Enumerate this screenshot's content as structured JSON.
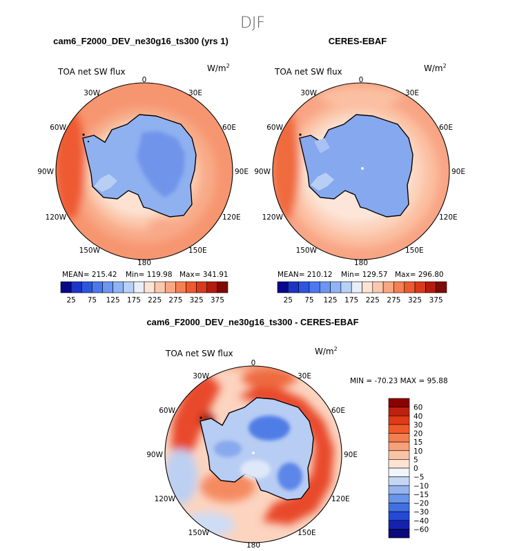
{
  "figure_title": "DJF",
  "chart_data": [
    {
      "type": "heatmap",
      "projection": "south-polar stereographic",
      "title": "cam6_F2000_DEV_ne30g16_ts300 (yrs 1)",
      "variable": "TOA net SW flux",
      "units": "W/m",
      "units_exp": "2",
      "lon_labels": [
        "0",
        "30E",
        "60E",
        "90E",
        "120E",
        "150E",
        "180",
        "150W",
        "120W",
        "90W",
        "60W",
        "30W"
      ],
      "stats": {
        "mean_label": "MEAN= 215.42",
        "min_label": "Min= 119.98",
        "max_label": "Max= 341.91"
      },
      "colorbar": {
        "levels": [
          25,
          50,
          75,
          100,
          125,
          150,
          175,
          200,
          225,
          250,
          275,
          300,
          325,
          350,
          375
        ],
        "labels": [
          "25",
          "75",
          "125",
          "175",
          "225",
          "275",
          "325",
          "375"
        ],
        "colors": [
          "#08088a",
          "#1c34c8",
          "#2d55e0",
          "#4a78ee",
          "#6b96f2",
          "#8fb3f4",
          "#b8d0f7",
          "#e8eef9",
          "#fde3d3",
          "#fcc8ad",
          "#f9a783",
          "#f58054",
          "#ee5a2e",
          "#d93a1b",
          "#b31b0f",
          "#7f0a05"
        ]
      }
    },
    {
      "type": "heatmap",
      "projection": "south-polar stereographic",
      "title": "CERES-EBAF",
      "variable": "TOA net SW flux",
      "units": "W/m",
      "units_exp": "2",
      "lon_labels": [
        "0",
        "30E",
        "60E",
        "90E",
        "120E",
        "150E",
        "180",
        "150W",
        "120W",
        "90W",
        "60W",
        "30W"
      ],
      "stats": {
        "mean_label": "MEAN= 210.12",
        "min_label": "Min= 129.57",
        "max_label": "Max= 296.80"
      },
      "colorbar": {
        "levels": [
          25,
          50,
          75,
          100,
          125,
          150,
          175,
          200,
          225,
          250,
          275,
          300,
          325,
          350,
          375
        ],
        "labels": [
          "25",
          "75",
          "125",
          "175",
          "225",
          "275",
          "325",
          "375"
        ],
        "colors": [
          "#08088a",
          "#1c34c8",
          "#2d55e0",
          "#4a78ee",
          "#6b96f2",
          "#8fb3f4",
          "#b8d0f7",
          "#e8eef9",
          "#fde3d3",
          "#fcc8ad",
          "#f9a783",
          "#f58054",
          "#ee5a2e",
          "#d93a1b",
          "#b31b0f",
          "#7f0a05"
        ]
      }
    },
    {
      "type": "heatmap",
      "projection": "south-polar stereographic",
      "title": "cam6_F2000_DEV_ne30g16_ts300 - CERES-EBAF",
      "variable": "TOA net SW flux",
      "units": "W/m",
      "units_exp": "2",
      "lon_labels": [
        "0",
        "30E",
        "60E",
        "90E",
        "120E",
        "150E",
        "180",
        "150W",
        "120W",
        "90W",
        "60W",
        "30W"
      ],
      "stats": {
        "minmax_label": "MIN = -70.23 MAX =  95.88"
      },
      "colorbar": {
        "labels": [
          "60",
          "40",
          "30",
          "20",
          "15",
          "10",
          "5",
          "0",
          "-5",
          "-10",
          "-15",
          "-20",
          "-30",
          "-40",
          "-60"
        ],
        "colors": [
          "#8b0000",
          "#c0200e",
          "#e03a18",
          "#f05a2a",
          "#f57e4e",
          "#f8a079",
          "#fbc3a5",
          "#fde3d2",
          "#f1f4fb",
          "#c5d6f5",
          "#95b4ef",
          "#6a93ea",
          "#4170e4",
          "#2449d6",
          "#1422b0",
          "#0a0a7a"
        ]
      }
    }
  ]
}
